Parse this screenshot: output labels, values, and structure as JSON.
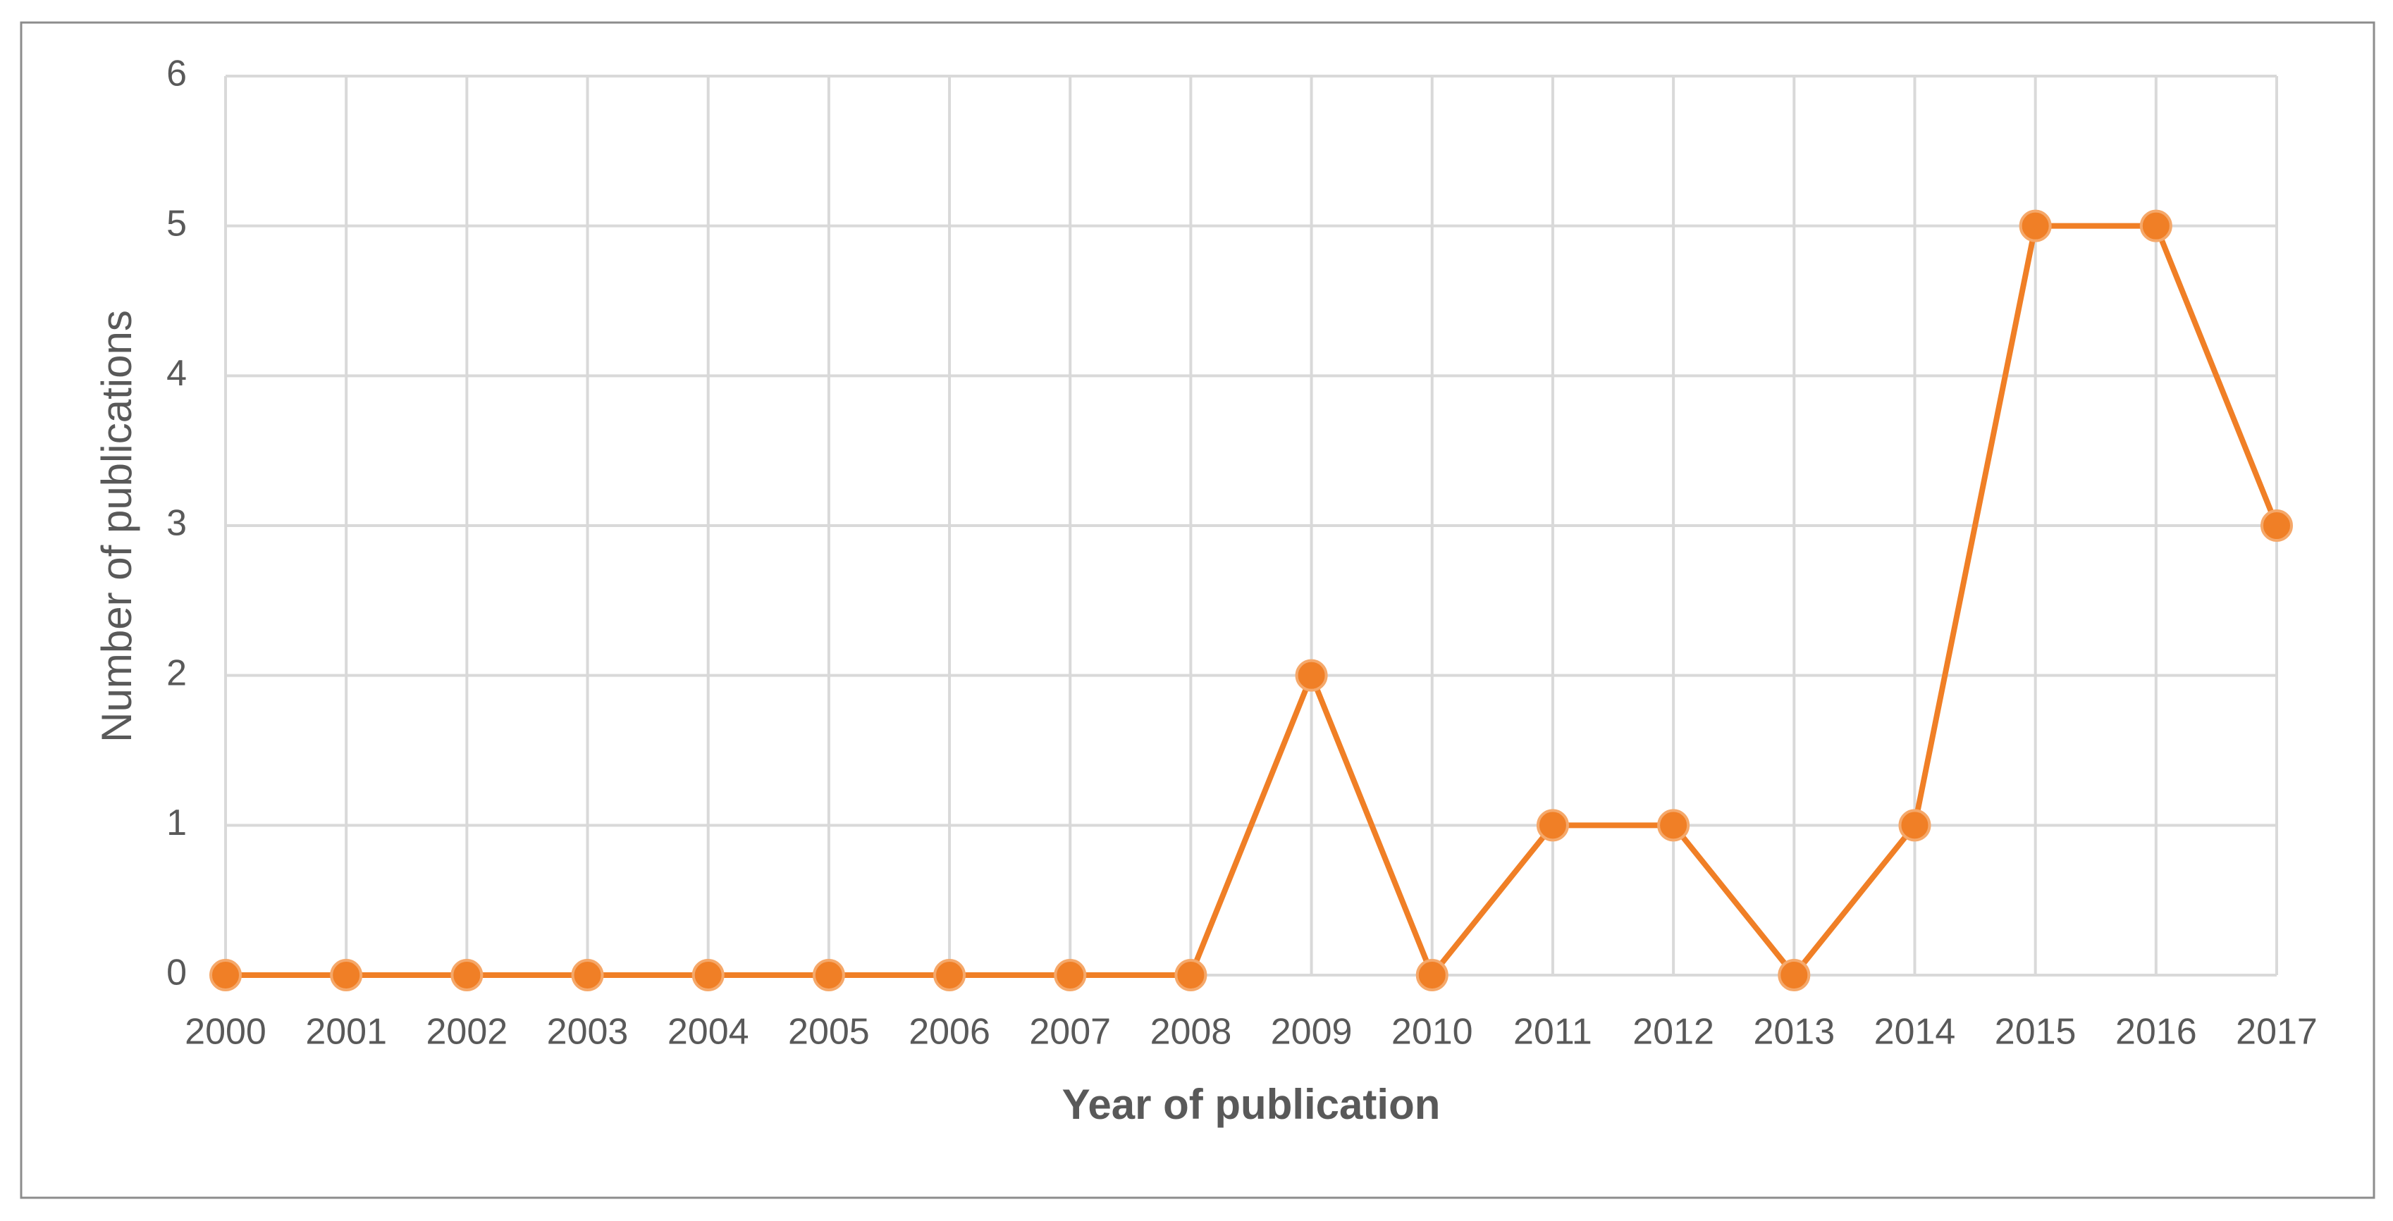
{
  "chart_data": {
    "type": "line",
    "x_label": "Year of publication",
    "y_label": "Number of publications",
    "categories": [
      "2000",
      "2001",
      "2002",
      "2003",
      "2004",
      "2005",
      "2006",
      "2007",
      "2008",
      "2009",
      "2010",
      "2011",
      "2012",
      "2013",
      "2014",
      "2015",
      "2016",
      "2017"
    ],
    "values": [
      0,
      0,
      0,
      0,
      0,
      0,
      0,
      0,
      0,
      2,
      0,
      1,
      1,
      0,
      1,
      5,
      5,
      3
    ],
    "color": "#f07f26",
    "ylim": [
      0,
      6
    ],
    "yticks": [
      0,
      1,
      2,
      3,
      4,
      5,
      6
    ],
    "grid": true
  }
}
